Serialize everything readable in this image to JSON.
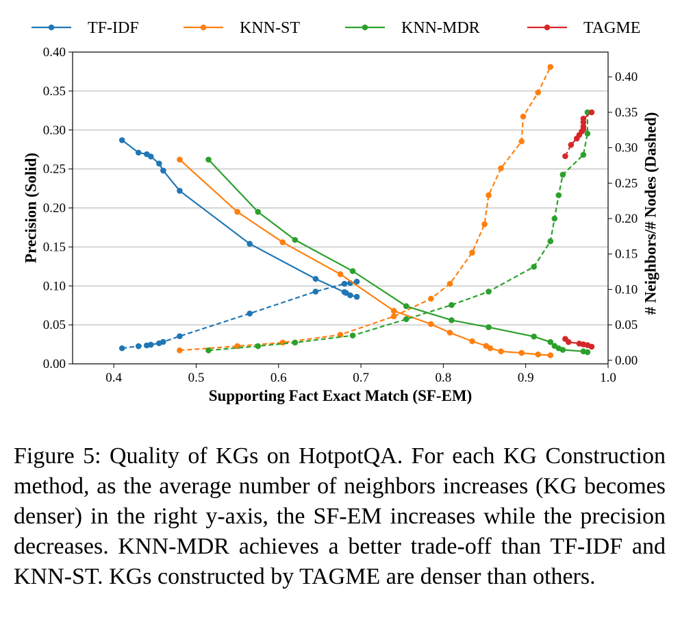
{
  "chart_data": {
    "type": "line",
    "xlabel": "Supporting Fact Exact Match (SF-EM)",
    "ylabel_left": "Precision (Solid)",
    "ylabel_right": "# Neighbors/# Nodes (Dashed)",
    "xlim": [
      0.35,
      1.0
    ],
    "ylim_left": [
      0.0,
      0.4
    ],
    "ylim_right": [
      -0.005,
      0.435
    ],
    "xticks": [
      "0.4",
      "0.5",
      "0.6",
      "0.7",
      "0.8",
      "0.9",
      "1.0"
    ],
    "xtick_values": [
      0.4,
      0.5,
      0.6,
      0.7,
      0.8,
      0.9,
      1.0
    ],
    "yticks_left": [
      "0.00",
      "0.05",
      "0.10",
      "0.15",
      "0.20",
      "0.25",
      "0.30",
      "0.35",
      "0.40"
    ],
    "ytick_values_left": [
      0.0,
      0.05,
      0.1,
      0.15,
      0.2,
      0.25,
      0.3,
      0.35,
      0.4
    ],
    "yticks_right": [
      "0.00",
      "0.05",
      "0.10",
      "0.15",
      "0.20",
      "0.25",
      "0.30",
      "0.35",
      "0.40"
    ],
    "ytick_values_right": [
      0.0,
      0.05,
      0.1,
      0.15,
      0.2,
      0.25,
      0.3,
      0.35,
      0.4
    ],
    "grid": "horizontal",
    "legend_position": "top, above plot",
    "series": [
      {
        "name": "TF-IDF",
        "color": "#1f77b4",
        "precision": {
          "x": [
            0.41,
            0.43,
            0.44,
            0.445,
            0.455,
            0.46,
            0.48,
            0.565,
            0.645,
            0.68,
            0.682,
            0.687,
            0.695
          ],
          "y": [
            0.287,
            0.271,
            0.269,
            0.266,
            0.257,
            0.248,
            0.222,
            0.154,
            0.109,
            0.092,
            0.091,
            0.088,
            0.086
          ]
        },
        "neighbors": {
          "x": [
            0.41,
            0.43,
            0.44,
            0.445,
            0.455,
            0.46,
            0.48,
            0.565,
            0.645,
            0.68,
            0.687,
            0.695
          ],
          "y": [
            0.017,
            0.02,
            0.021,
            0.022,
            0.024,
            0.026,
            0.034,
            0.066,
            0.097,
            0.108,
            0.109,
            0.111
          ]
        }
      },
      {
        "name": "KNN-ST",
        "color": "#ff7f0e",
        "precision": {
          "x": [
            0.48,
            0.55,
            0.605,
            0.675,
            0.74,
            0.785,
            0.808,
            0.835,
            0.852,
            0.857,
            0.87,
            0.895,
            0.915,
            0.93
          ],
          "y": [
            0.262,
            0.195,
            0.156,
            0.115,
            0.068,
            0.051,
            0.04,
            0.029,
            0.023,
            0.02,
            0.016,
            0.014,
            0.012,
            0.011
          ]
        },
        "neighbors": {
          "x": [
            0.48,
            0.55,
            0.605,
            0.675,
            0.74,
            0.785,
            0.808,
            0.835,
            0.85,
            0.855,
            0.87,
            0.895,
            0.897,
            0.915,
            0.93
          ],
          "y": [
            0.014,
            0.02,
            0.025,
            0.036,
            0.062,
            0.087,
            0.108,
            0.152,
            0.192,
            0.233,
            0.271,
            0.309,
            0.344,
            0.378,
            0.414
          ]
        }
      },
      {
        "name": "KNN-MDR",
        "color": "#2ca02c",
        "precision": {
          "x": [
            0.515,
            0.575,
            0.62,
            0.69,
            0.755,
            0.81,
            0.855,
            0.91,
            0.93,
            0.935,
            0.94,
            0.945,
            0.97,
            0.975
          ],
          "y": [
            0.262,
            0.195,
            0.159,
            0.119,
            0.074,
            0.056,
            0.047,
            0.035,
            0.028,
            0.023,
            0.02,
            0.018,
            0.016,
            0.015
          ]
        },
        "neighbors": {
          "x": [
            0.515,
            0.575,
            0.62,
            0.69,
            0.755,
            0.81,
            0.855,
            0.91,
            0.93,
            0.935,
            0.94,
            0.945,
            0.97,
            0.975,
            0.975
          ],
          "y": [
            0.014,
            0.02,
            0.025,
            0.035,
            0.058,
            0.078,
            0.097,
            0.132,
            0.168,
            0.2,
            0.233,
            0.262,
            0.29,
            0.32,
            0.35
          ]
        }
      },
      {
        "name": "TAGME",
        "color": "#d62728",
        "precision": {
          "x": [
            0.948,
            0.952,
            0.965,
            0.97,
            0.975,
            0.98
          ],
          "y": [
            0.032,
            0.028,
            0.026,
            0.025,
            0.024,
            0.022
          ]
        },
        "neighbors": {
          "x": [
            0.948,
            0.955,
            0.962,
            0.965,
            0.968,
            0.97,
            0.97,
            0.97,
            0.97,
            0.98
          ],
          "y": [
            0.288,
            0.304,
            0.313,
            0.318,
            0.323,
            0.326,
            0.33,
            0.336,
            0.341,
            0.35
          ]
        }
      }
    ]
  },
  "caption": "Figure 5: Quality of KGs on HotpotQA. For each KG Con­struction method, as the average number of neighbors in­creases (KG becomes denser) in the right y-axis, the SF-EM increases while the precision decreases. KNN-MDR achieves a better trade-off than TF-IDF and KNN-ST. KGs constructed by TAGME are denser than others."
}
